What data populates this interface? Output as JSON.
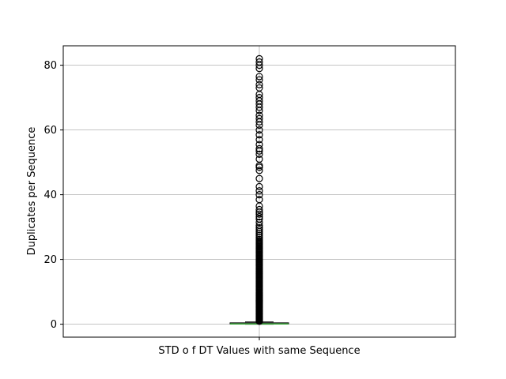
{
  "chart_data": {
    "type": "box",
    "title": "",
    "xlabel": "STD o f DT Values with same Sequence",
    "ylabel": "Duplicates per Sequence",
    "ylim": [
      -4,
      86
    ],
    "yticks": [
      0,
      20,
      40,
      60,
      80
    ],
    "grid": true,
    "box": {
      "category": "STD o f DT Values with same Sequence",
      "q1": 0.0,
      "median": 0.1,
      "q3": 0.3,
      "whisker_low": 0.0,
      "whisker_high": 0.7
    },
    "outliers": [
      0.9,
      1.1,
      1.3,
      1.5,
      1.7,
      1.9,
      2.1,
      2.3,
      2.5,
      2.7,
      2.9,
      3.1,
      3.3,
      3.5,
      3.7,
      3.9,
      4.1,
      4.3,
      4.5,
      4.7,
      4.9,
      5.1,
      5.3,
      5.5,
      5.7,
      5.9,
      6.1,
      6.3,
      6.5,
      6.7,
      6.9,
      7.1,
      7.3,
      7.5,
      7.7,
      7.9,
      8.1,
      8.3,
      8.5,
      8.7,
      8.9,
      9.1,
      9.3,
      9.5,
      9.7,
      9.9,
      10.2,
      10.5,
      10.8,
      11.1,
      11.4,
      11.7,
      12.0,
      12.3,
      12.6,
      12.9,
      13.2,
      13.5,
      13.8,
      14.1,
      14.4,
      14.7,
      15.0,
      15.3,
      15.6,
      15.9,
      16.2,
      16.5,
      16.8,
      17.1,
      17.4,
      17.7,
      18.0,
      18.3,
      18.6,
      18.9,
      19.2,
      19.5,
      19.8,
      20.1,
      20.4,
      20.7,
      21.0,
      21.3,
      21.6,
      21.9,
      22.2,
      22.5,
      22.8,
      23.1,
      23.4,
      23.7,
      24.0,
      24.3,
      24.6,
      24.9,
      25.2,
      25.5,
      25.8,
      26.2,
      26.8,
      27.4,
      28.0,
      28.6,
      29.2,
      29.8,
      30.5,
      31.5,
      32.5,
      33.2,
      34.0,
      34.6,
      35.4,
      36.5,
      38.5,
      40.0,
      41.2,
      42.5,
      45.0,
      47.5,
      48.5,
      49.0,
      51.0,
      52.5,
      53.5,
      54.2,
      55.5,
      57.0,
      58.5,
      60.0,
      61.5,
      62.5,
      63.5,
      64.5,
      66.0,
      67.0,
      68.0,
      69.0,
      70.0,
      71.0,
      73.0,
      74.0,
      75.5,
      76.5,
      79.0,
      80.0,
      81.0,
      82.0
    ]
  }
}
